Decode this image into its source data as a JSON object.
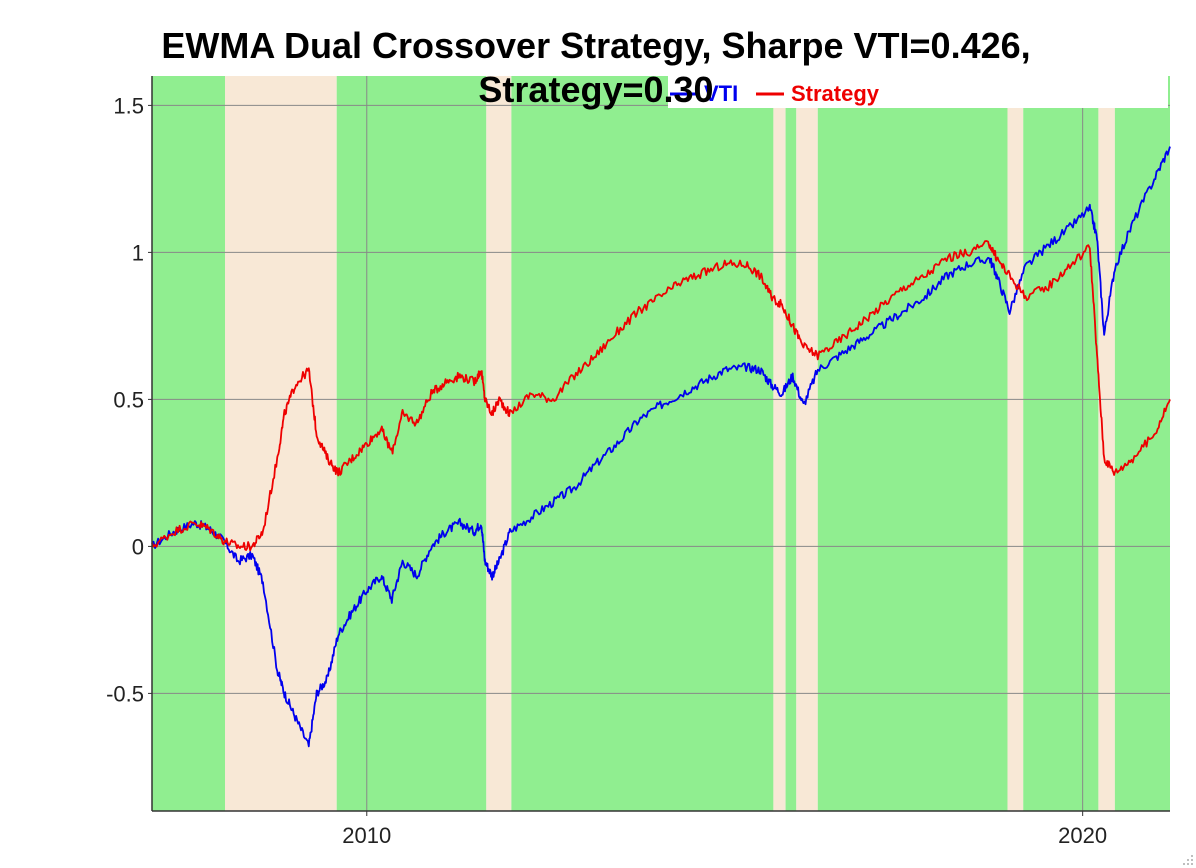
{
  "chart_data": {
    "type": "line",
    "title": "EWMA Dual Crossover Strategy, Sharpe VTI=0.426, Strategy=0.30",
    "title_lines": [
      "EWMA Dual Crossover Strategy, Sharpe VTI=0.426,",
      "Strategy=0.30"
    ],
    "xlabel": "",
    "ylabel": "",
    "xlim": [
      2007.0,
      2021.22
    ],
    "ylim": [
      -0.9,
      1.6
    ],
    "grid": true,
    "legend_placement": "top",
    "x_ticks": [
      {
        "value": 2010,
        "label": "2010"
      },
      {
        "value": 2020,
        "label": "2020"
      }
    ],
    "y_ticks": [
      {
        "value": 1.5,
        "label": "1.5"
      },
      {
        "value": 1.0,
        "label": "1"
      },
      {
        "value": 0.5,
        "label": "0.5"
      },
      {
        "value": 0.0,
        "label": "0"
      },
      {
        "value": -0.5,
        "label": "-0.5"
      }
    ],
    "colors": {
      "risk_on": "#90ee90",
      "risk_off": "#f8e8d6",
      "grid": "#888888"
    },
    "regimes": [
      {
        "state": "risk_on",
        "start": 2007.0,
        "end": 2008.02
      },
      {
        "state": "risk_off",
        "start": 2008.02,
        "end": 2009.58
      },
      {
        "state": "risk_on",
        "start": 2009.58,
        "end": 2011.67
      },
      {
        "state": "risk_off",
        "start": 2011.67,
        "end": 2012.02
      },
      {
        "state": "risk_on",
        "start": 2012.02,
        "end": 2015.68
      },
      {
        "state": "risk_off",
        "start": 2015.68,
        "end": 2015.85
      },
      {
        "state": "risk_on",
        "start": 2015.85,
        "end": 2016.0
      },
      {
        "state": "risk_off",
        "start": 2016.0,
        "end": 2016.3
      },
      {
        "state": "risk_on",
        "start": 2016.3,
        "end": 2018.95
      },
      {
        "state": "risk_off",
        "start": 2018.95,
        "end": 2019.17
      },
      {
        "state": "risk_on",
        "start": 2019.17,
        "end": 2020.22
      },
      {
        "state": "risk_off",
        "start": 2020.22,
        "end": 2020.45
      },
      {
        "state": "risk_on",
        "start": 2020.45,
        "end": 2021.22
      }
    ],
    "series": [
      {
        "name": "VTI",
        "color": "#0000ee",
        "x": [
          2007.0,
          2007.3,
          2007.6,
          2007.8,
          2008.0,
          2008.2,
          2008.4,
          2008.55,
          2008.75,
          2008.85,
          2009.0,
          2009.19,
          2009.3,
          2009.45,
          2009.6,
          2009.8,
          2010.0,
          2010.2,
          2010.35,
          2010.5,
          2010.7,
          2010.9,
          2011.1,
          2011.3,
          2011.5,
          2011.6,
          2011.65,
          2011.75,
          2011.85,
          2012.0,
          2012.3,
          2012.6,
          2012.9,
          2013.2,
          2013.5,
          2013.8,
          2014.1,
          2014.4,
          2014.7,
          2015.0,
          2015.3,
          2015.5,
          2015.65,
          2015.8,
          2015.95,
          2016.1,
          2016.3,
          2016.6,
          2016.9,
          2017.2,
          2017.5,
          2017.8,
          2018.1,
          2018.4,
          2018.7,
          2018.8,
          2018.98,
          2019.2,
          2019.5,
          2019.8,
          2020.1,
          2020.2,
          2020.3,
          2020.45,
          2020.7,
          2021.0,
          2021.22
        ],
        "y": [
          0.0,
          0.05,
          0.08,
          0.06,
          0.02,
          -0.05,
          -0.03,
          -0.12,
          -0.42,
          -0.5,
          -0.58,
          -0.68,
          -0.5,
          -0.45,
          -0.3,
          -0.22,
          -0.15,
          -0.1,
          -0.18,
          -0.05,
          -0.1,
          0.0,
          0.05,
          0.08,
          0.05,
          0.08,
          -0.05,
          -0.1,
          -0.05,
          0.05,
          0.1,
          0.15,
          0.2,
          0.28,
          0.35,
          0.43,
          0.48,
          0.52,
          0.56,
          0.6,
          0.61,
          0.6,
          0.55,
          0.52,
          0.58,
          0.48,
          0.6,
          0.65,
          0.7,
          0.75,
          0.8,
          0.85,
          0.92,
          0.96,
          0.98,
          0.92,
          0.8,
          0.95,
          1.02,
          1.08,
          1.15,
          1.05,
          0.72,
          0.95,
          1.1,
          1.25,
          1.36
        ]
      },
      {
        "name": "Strategy",
        "color": "#ee0000",
        "x": [
          2007.0,
          2007.3,
          2007.6,
          2007.8,
          2008.0,
          2008.2,
          2008.4,
          2008.55,
          2008.75,
          2008.85,
          2009.0,
          2009.19,
          2009.3,
          2009.45,
          2009.6,
          2009.8,
          2010.0,
          2010.2,
          2010.35,
          2010.5,
          2010.7,
          2010.9,
          2011.1,
          2011.3,
          2011.5,
          2011.6,
          2011.65,
          2011.75,
          2011.85,
          2012.0,
          2012.3,
          2012.6,
          2012.9,
          2013.2,
          2013.5,
          2013.8,
          2014.1,
          2014.4,
          2014.7,
          2015.0,
          2015.3,
          2015.5,
          2015.65,
          2015.8,
          2015.95,
          2016.1,
          2016.3,
          2016.6,
          2016.9,
          2017.2,
          2017.5,
          2017.8,
          2018.1,
          2018.4,
          2018.7,
          2018.8,
          2018.98,
          2019.2,
          2019.5,
          2019.8,
          2020.1,
          2020.2,
          2020.3,
          2020.45,
          2020.7,
          2021.0,
          2021.22
        ],
        "y": [
          0.0,
          0.05,
          0.08,
          0.06,
          0.02,
          0.0,
          0.0,
          0.05,
          0.3,
          0.45,
          0.55,
          0.6,
          0.38,
          0.3,
          0.25,
          0.3,
          0.35,
          0.4,
          0.32,
          0.45,
          0.42,
          0.52,
          0.56,
          0.58,
          0.56,
          0.6,
          0.5,
          0.45,
          0.5,
          0.45,
          0.52,
          0.5,
          0.58,
          0.65,
          0.73,
          0.8,
          0.85,
          0.9,
          0.93,
          0.96,
          0.96,
          0.92,
          0.85,
          0.82,
          0.75,
          0.68,
          0.65,
          0.7,
          0.76,
          0.82,
          0.88,
          0.92,
          0.98,
          1.0,
          1.03,
          0.98,
          0.92,
          0.85,
          0.88,
          0.95,
          1.02,
          0.65,
          0.3,
          0.25,
          0.3,
          0.38,
          0.5
        ]
      }
    ]
  }
}
